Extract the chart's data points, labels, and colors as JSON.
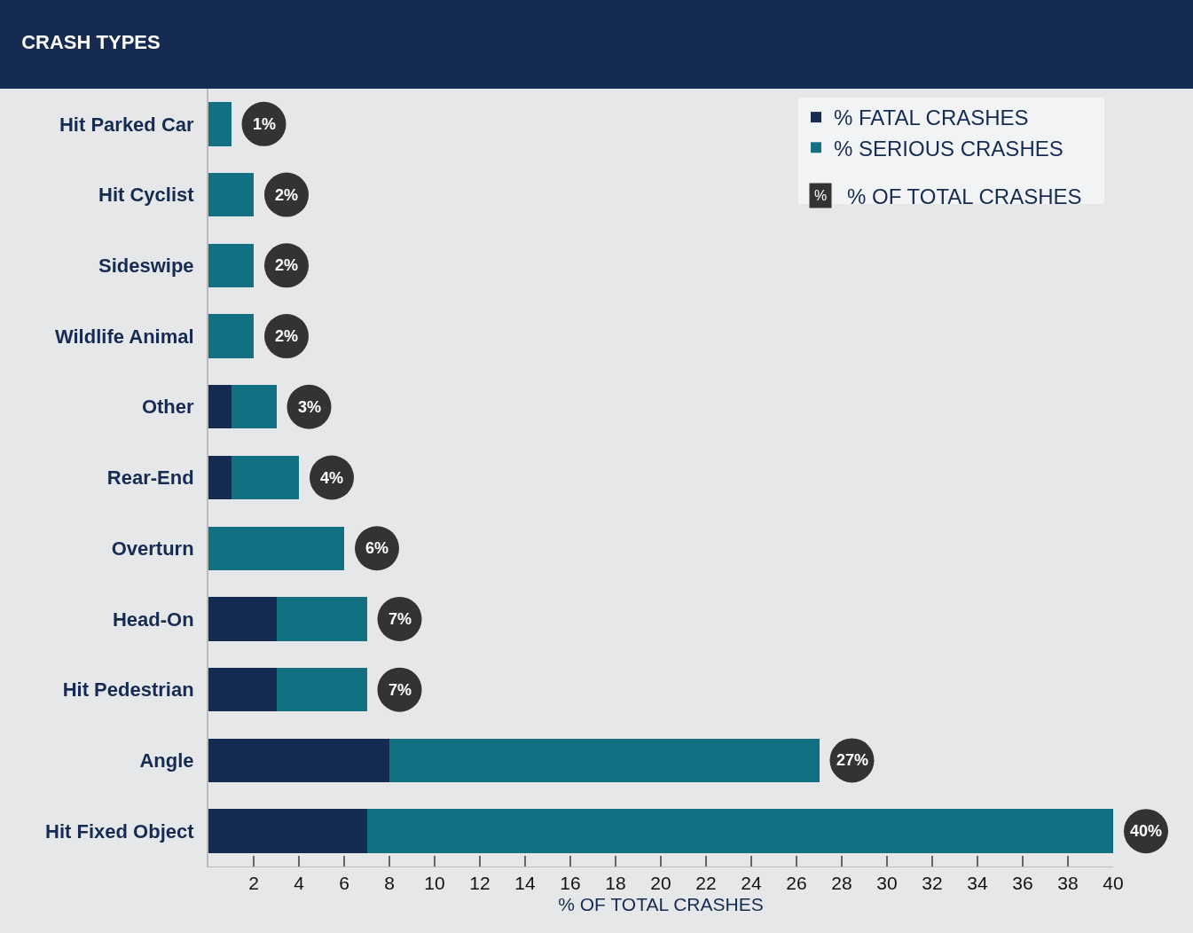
{
  "chart_data": {
    "type": "bar",
    "orientation": "horizontal",
    "stacked": true,
    "title": "CRASH TYPES",
    "xlabel": "% OF TOTAL CRASHES",
    "categories": [
      "Hit Parked Car",
      "Hit Cyclist",
      "Sideswipe",
      "Wildlife Animal",
      "Other",
      "Rear-End",
      "Overturn",
      "Head-On",
      "Hit Pedestrian",
      "Angle",
      "Hit Fixed Object"
    ],
    "series": [
      {
        "name": "% FATAL CRASHES",
        "color": "#152b52",
        "values": [
          0,
          0,
          0,
          0,
          1,
          1,
          0,
          3,
          3,
          8,
          7
        ]
      },
      {
        "name": "% SERIOUS CRASHES",
        "color": "#137083",
        "values": [
          1,
          2,
          2,
          2,
          2,
          3,
          6,
          4,
          4,
          19,
          33
        ]
      }
    ],
    "totals": [
      "1%",
      "2%",
      "2%",
      "2%",
      "3%",
      "4%",
      "6%",
      "7%",
      "7%",
      "27%",
      "40%"
    ],
    "annotations": [
      "%",
      "% OF TOTAL CRASHES"
    ],
    "xlim": [
      0,
      40
    ],
    "xticks": [
      2,
      4,
      6,
      8,
      10,
      12,
      14,
      16,
      18,
      20,
      22,
      24,
      26,
      28,
      30,
      32,
      34,
      36,
      38,
      40
    ],
    "grid": false,
    "legend": "top right"
  }
}
